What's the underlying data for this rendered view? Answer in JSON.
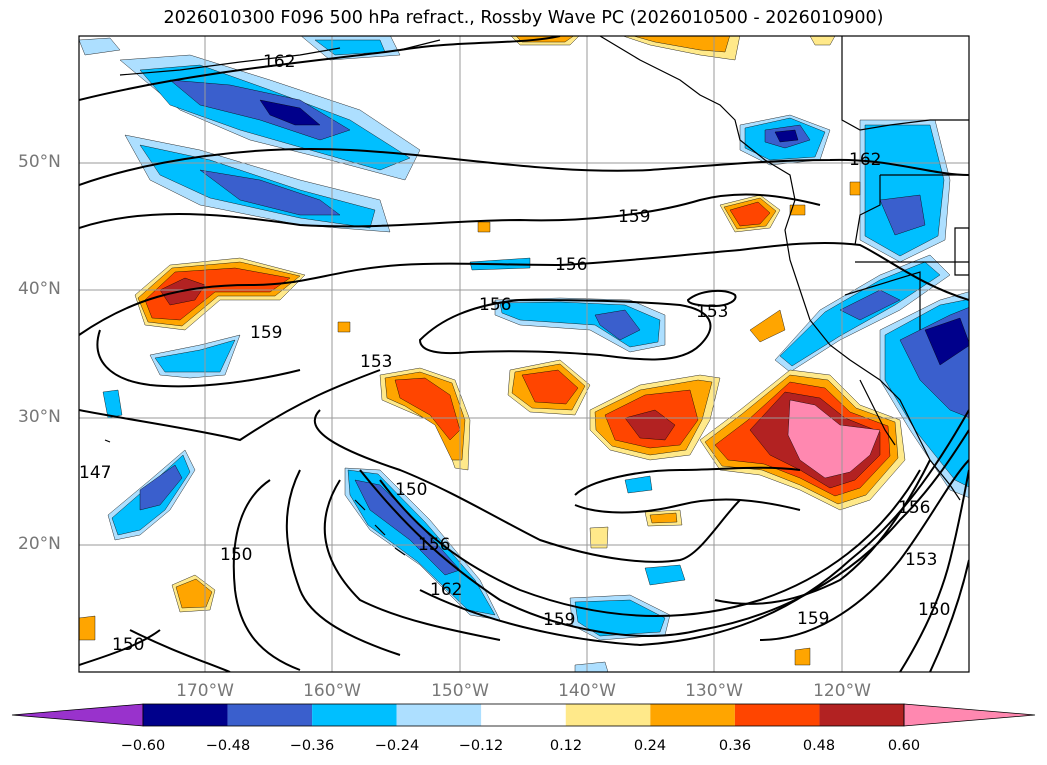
{
  "title": "2026010300 F096 500 hPa refract., Rossby Wave PC (2026010500 - 2026010900)",
  "lat_labels": [
    "50°N",
    "40°N",
    "30°N",
    "20°N"
  ],
  "lon_labels": [
    "170°W",
    "160°W",
    "150°W",
    "140°W",
    "130°W",
    "120°W"
  ],
  "contour_labels": [
    "162",
    "162",
    "159",
    "159",
    "159",
    "159",
    "156",
    "156",
    "156",
    "156",
    "153",
    "153",
    "153",
    "150",
    "150",
    "150",
    "150",
    "162",
    "147"
  ],
  "colorbar": {
    "tick_labels": [
      "−0.60",
      "−0.48",
      "−0.36",
      "−0.24",
      "−0.12",
      "0.12",
      "0.24",
      "0.36",
      "0.48",
      "0.60"
    ],
    "colors": [
      "#9932CC",
      "#00008B",
      "#3A5FCD",
      "#00BFFF",
      "#ADDFFF",
      "#FFFFFF",
      "#FFE98A",
      "#FFA500",
      "#FF4500",
      "#B22222",
      "#FF88B0"
    ]
  }
}
